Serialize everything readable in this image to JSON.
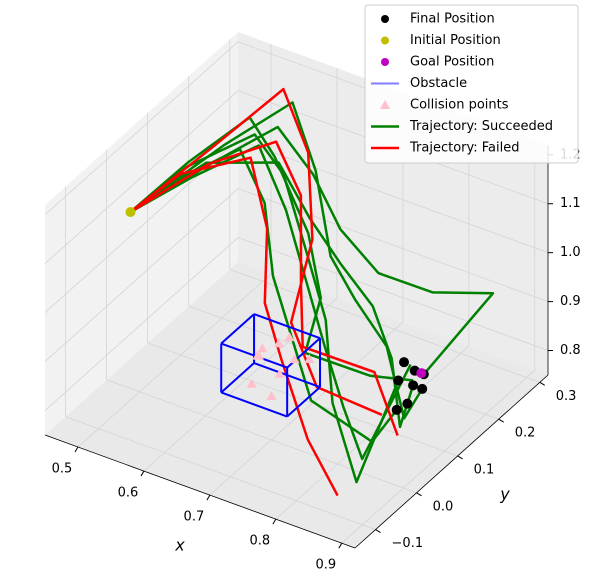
{
  "chart_data": {
    "type": "line3d",
    "xlabel": "x",
    "ylabel": "y",
    "xlim": [
      0.45,
      0.92
    ],
    "ylim": [
      -0.15,
      0.32
    ],
    "zlim": [
      0.75,
      1.22
    ],
    "xticks": [
      0.5,
      0.6,
      0.7,
      0.8,
      0.9
    ],
    "yticks": [
      {
        "value": -0.1,
        "label": "−0.1"
      },
      {
        "value": 0.0,
        "label": "0.0"
      },
      0.1,
      0.2,
      0.3
    ],
    "zticks": [
      0.8,
      0.9,
      {
        "value": 1.0,
        "label": "1.0"
      },
      1.1,
      1.2
    ],
    "series": [
      {
        "name": "Final Position",
        "kind": "points",
        "color": "#000000",
        "x": [
          0.83,
          0.84,
          0.85,
          0.82,
          0.86,
          0.84,
          0.83,
          0.85
        ],
        "y": [
          0.1,
          0.12,
          0.09,
          0.13,
          0.11,
          0.08,
          0.14,
          0.13
        ],
        "z": [
          0.86,
          0.84,
          0.83,
          0.87,
          0.85,
          0.82,
          0.85,
          0.86
        ]
      },
      {
        "name": "Initial Position",
        "kind": "points",
        "color": "#bfbf00",
        "x": [
          0.48
        ],
        "y": [
          0.01
        ],
        "z": [
          1.1
        ]
      },
      {
        "name": "Goal Position",
        "kind": "points",
        "color": "#bf00bf",
        "x": [
          0.84
        ],
        "y": [
          0.14
        ],
        "z": [
          0.85
        ]
      },
      {
        "name": "Obstacle",
        "kind": "box",
        "color": "#0000ff",
        "x": [
          0.63,
          0.73
        ],
        "y": [
          -0.01,
          0.07
        ],
        "z": [
          0.82,
          0.92
        ]
      },
      {
        "name": "Collision points",
        "kind": "triangles",
        "color": "#ffc0cb",
        "x": [
          0.66,
          0.68,
          0.7,
          0.67,
          0.69,
          0.71,
          0.65,
          0.68,
          0.72,
          0.7
        ],
        "y": [
          0.03,
          0.05,
          0.02,
          0.0,
          0.06,
          0.04,
          0.05,
          0.01,
          0.06,
          0.0
        ],
        "z": [
          0.88,
          0.9,
          0.87,
          0.85,
          0.91,
          0.89,
          0.86,
          0.92,
          0.88,
          0.84
        ]
      },
      {
        "name": "Trajectory: Succeeded",
        "kind": "lines",
        "color": "#008000",
        "lines": [
          {
            "x": [
              0.48,
              0.5,
              0.53,
              0.58,
              0.65,
              0.7,
              0.72,
              0.8,
              0.84
            ],
            "y": [
              0.01,
              0.12,
              0.22,
              0.2,
              0.17,
              0.12,
              0.05,
              0.08,
              0.12
            ],
            "z": [
              1.1,
              1.13,
              1.16,
              1.12,
              1.02,
              0.95,
              0.9,
              0.87,
              0.85
            ]
          },
          {
            "x": [
              0.48,
              0.51,
              0.55,
              0.6,
              0.66,
              0.72,
              0.78,
              0.86,
              0.83
            ],
            "y": [
              0.01,
              0.1,
              0.2,
              0.19,
              0.15,
              0.1,
              0.02,
              -0.05,
              0.1
            ],
            "z": [
              1.1,
              1.14,
              1.15,
              1.1,
              1.0,
              0.93,
              0.85,
              0.78,
              0.86
            ]
          },
          {
            "x": [
              0.48,
              0.52,
              0.56,
              0.62,
              0.68,
              0.75,
              0.82,
              0.88,
              0.85
            ],
            "y": [
              0.01,
              0.14,
              0.24,
              0.23,
              0.2,
              0.18,
              0.2,
              0.25,
              0.13
            ],
            "z": [
              1.1,
              1.12,
              1.14,
              1.08,
              1.02,
              0.98,
              0.96,
              0.95,
              0.86
            ]
          },
          {
            "x": [
              0.48,
              0.5,
              0.54,
              0.59,
              0.64,
              0.7,
              0.76,
              0.84,
              0.84
            ],
            "y": [
              0.01,
              0.08,
              0.18,
              0.16,
              0.1,
              0.05,
              0.0,
              0.02,
              0.08
            ],
            "z": [
              1.1,
              1.12,
              1.13,
              1.06,
              0.98,
              0.92,
              0.86,
              0.8,
              0.82
            ]
          },
          {
            "x": [
              0.48,
              0.53,
              0.57,
              0.63,
              0.69,
              0.74,
              0.8,
              0.87,
              0.86
            ],
            "y": [
              0.01,
              0.16,
              0.26,
              0.22,
              0.16,
              0.14,
              0.12,
              0.05,
              0.11
            ],
            "z": [
              1.1,
              1.15,
              1.18,
              1.1,
              1.0,
              0.95,
              0.9,
              0.84,
              0.85
            ]
          },
          {
            "x": [
              0.48,
              0.51,
              0.55,
              0.61,
              0.67,
              0.73,
              0.79,
              0.85,
              0.83
            ],
            "y": [
              0.01,
              0.11,
              0.21,
              0.18,
              0.13,
              0.08,
              0.03,
              -0.02,
              0.13
            ],
            "z": [
              1.1,
              1.11,
              1.12,
              1.04,
              0.97,
              0.9,
              0.84,
              0.8,
              0.87
            ]
          },
          {
            "x": [
              0.48,
              0.52,
              0.58,
              0.64,
              0.7,
              0.76,
              0.82,
              0.87,
              0.84
            ],
            "y": [
              0.01,
              0.13,
              0.21,
              0.19,
              0.17,
              0.15,
              0.1,
              0.04,
              0.12
            ],
            "z": [
              1.1,
              1.13,
              1.1,
              1.03,
              0.98,
              0.94,
              0.9,
              0.83,
              0.84
            ]
          }
        ]
      },
      {
        "name": "Trajectory: Failed",
        "kind": "lines",
        "color": "#ff0000",
        "lines": [
          {
            "x": [
              0.48,
              0.52,
              0.55,
              0.6,
              0.65,
              0.68,
              0.75,
              0.83
            ],
            "y": [
              0.01,
              0.15,
              0.27,
              0.25,
              0.18,
              0.08,
              0.03,
              0.06
            ],
            "z": [
              1.1,
              1.15,
              1.19,
              1.1,
              1.0,
              0.92,
              0.86,
              0.82
            ]
          },
          {
            "x": [
              0.48,
              0.5,
              0.55,
              0.6,
              0.64,
              0.69,
              0.78,
              0.85
            ],
            "y": [
              0.01,
              0.1,
              0.19,
              0.15,
              0.08,
              0.04,
              -0.04,
              -0.08
            ],
            "z": [
              1.1,
              1.12,
              1.11,
              1.02,
              0.94,
              0.88,
              0.82,
              0.77
            ]
          },
          {
            "x": [
              0.48,
              0.53,
              0.57,
              0.62,
              0.67,
              0.71,
              0.8,
              0.86
            ],
            "y": [
              0.01,
              0.12,
              0.22,
              0.2,
              0.12,
              0.06,
              0.09,
              0.05
            ],
            "z": [
              1.1,
              1.14,
              1.13,
              1.06,
              0.96,
              0.9,
              0.87,
              0.8
            ]
          }
        ]
      }
    ]
  }
}
